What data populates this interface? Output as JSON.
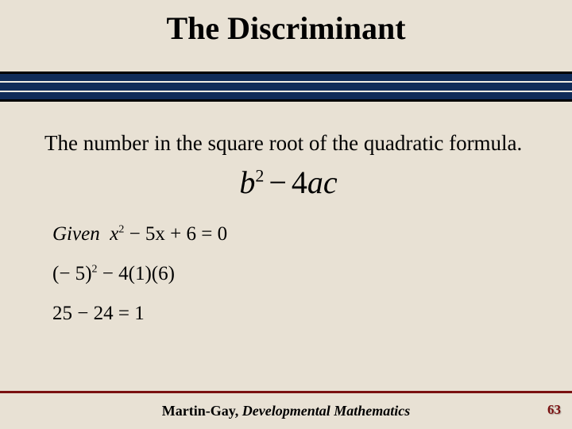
{
  "title": "The Discriminant",
  "body_text": "The number in the square root of the quadratic formula.",
  "formula": {
    "b": "b",
    "exp": "2",
    "minus": "−",
    "four": "4",
    "a": "a",
    "c": "c"
  },
  "given": {
    "label": "Given",
    "x": "x",
    "exp": "2",
    "rest": " − 5x + 6 = 0"
  },
  "step1": {
    "lp1": "(",
    "neg5": "− 5",
    "rp1": ")",
    "exp": "2",
    "mid": " − 4",
    "lp2": "(",
    "one": "1",
    "rp2": ")",
    "lp3": "(",
    "six": "6",
    "rp3": ")"
  },
  "step2": "25 − 24 = 1",
  "footer": {
    "author": "Martin-Gay, ",
    "book": "Developmental Mathematics"
  },
  "page_number": "63",
  "colors": {
    "background": "#e8e1d4",
    "band": "#0f2c59",
    "accent": "#7a1010"
  }
}
